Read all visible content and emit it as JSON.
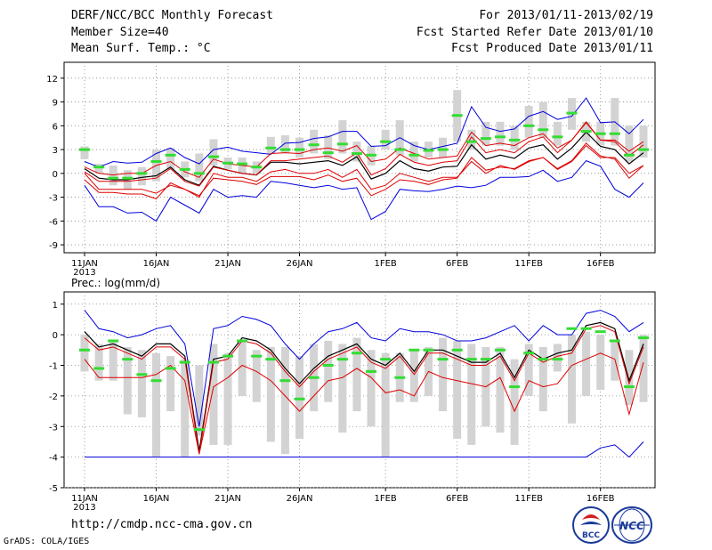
{
  "header": {
    "title": "DERF/NCC/BCC Monthly Forecast",
    "member_size": "Member Size=40",
    "variable": "Mean Surf. Temp.: °C",
    "forecast_period": "For 2013/01/11-2013/02/19",
    "start_ref_date": "Fcst Started Refer Date 2013/01/10",
    "produced_date": "Fcst Produced Date 2013/01/11"
  },
  "footer": {
    "url": "http://cmdp.ncc-cma.gov.cn",
    "credit": "GrADS: COLA/IGES",
    "logo_bcc": "BCC",
    "logo_ncc": "NCC"
  },
  "colors": {
    "box": "#d3d3d3",
    "median": "#33dd33",
    "mean": "#000000",
    "sd": "#dd0000",
    "extreme": "#0000dd",
    "grid": "#888888"
  },
  "chart_data": [
    {
      "type": "box-line",
      "title": "",
      "ylabel": "Mean Surf. Temp.: °C",
      "ylim": [
        -10,
        14
      ],
      "yticks": [
        "12",
        "9",
        "6",
        "3",
        "0",
        "-3",
        "-6",
        "-9"
      ],
      "ytick_values": [
        12,
        9,
        6,
        3,
        0,
        -3,
        -6,
        -9
      ],
      "x_tick_labels": [
        "11JAN",
        "16JAN",
        "21JAN",
        "26JAN",
        "1FEB",
        "6FEB",
        "11FEB",
        "16FEB"
      ],
      "x_tick_days": [
        1,
        6,
        11,
        16,
        22,
        27,
        32,
        37
      ],
      "x_year_label": "2013",
      "days": [
        1,
        2,
        3,
        4,
        5,
        6,
        7,
        8,
        9,
        10,
        11,
        12,
        13,
        14,
        15,
        16,
        17,
        18,
        19,
        20,
        21,
        22,
        23,
        24,
        25,
        26,
        27,
        28,
        29,
        30,
        31,
        32,
        33,
        34,
        35,
        36,
        37,
        38,
        39,
        40
      ],
      "grid": true,
      "series": [
        {
          "name": "max",
          "values": [
            1.5,
            0.8,
            1.5,
            1.3,
            1.4,
            2.5,
            3.2,
            2.0,
            1.2,
            3.0,
            3.3,
            2.8,
            2.6,
            2.4,
            3.8,
            3.9,
            4.4,
            4.6,
            5.3,
            5.3,
            3.4,
            3.5,
            4.5,
            3.5,
            3.0,
            3.4,
            3.8,
            8.4,
            5.8,
            5.3,
            5.6,
            7.2,
            7.8,
            6.8,
            7.2,
            9.5,
            6.4,
            6.5,
            5.0,
            6.8
          ]
        },
        {
          "name": "q75",
          "values": [
            0.8,
            0.0,
            -0.2,
            0.0,
            0.0,
            1.0,
            1.5,
            0.2,
            -0.5,
            1.8,
            1.2,
            1.0,
            0.8,
            2.5,
            2.6,
            2.5,
            3.0,
            3.2,
            2.8,
            3.5,
            1.5,
            1.8,
            3.2,
            2.5,
            1.8,
            2.0,
            2.2,
            5.2,
            3.5,
            3.8,
            3.5,
            4.5,
            5.0,
            3.2,
            4.2,
            6.5,
            4.2,
            4.2,
            2.8,
            4.0
          ]
        },
        {
          "name": "mean",
          "values": [
            0.6,
            -0.6,
            -0.8,
            -0.8,
            -0.5,
            -0.3,
            0.8,
            -0.8,
            -1.5,
            0.9,
            0.4,
            0.0,
            -0.2,
            1.4,
            1.4,
            1.2,
            1.4,
            1.6,
            1.0,
            2.1,
            -0.7,
            0.0,
            1.6,
            0.6,
            0.3,
            0.8,
            0.9,
            3.6,
            1.8,
            2.3,
            1.9,
            3.2,
            3.6,
            1.8,
            3.2,
            5.2,
            3.4,
            3.0,
            1.2,
            2.6
          ]
        },
        {
          "name": "q25",
          "values": [
            0.0,
            -2.0,
            -2.0,
            -2.0,
            -2.0,
            -2.5,
            -1.5,
            -2.0,
            -3.0,
            0.0,
            -0.5,
            -0.5,
            -1.0,
            0.2,
            0.5,
            0.0,
            0.0,
            0.5,
            -0.5,
            0.5,
            -2.0,
            -1.5,
            0.0,
            -0.5,
            -1.0,
            -0.5,
            -0.5,
            1.5,
            0.0,
            1.0,
            0.5,
            1.5,
            2.0,
            0.5,
            1.5,
            3.5,
            2.0,
            2.0,
            0.0,
            1.0
          ]
        },
        {
          "name": "min",
          "values": [
            -1.5,
            -4.2,
            -4.2,
            -5.0,
            -4.9,
            -6.0,
            -3.0,
            -4.0,
            -5.0,
            -2.0,
            -3.0,
            -2.8,
            -3.0,
            -1.0,
            -1.2,
            -1.5,
            -1.8,
            -1.5,
            -2.0,
            -1.8,
            -5.8,
            -4.8,
            -2.0,
            -2.2,
            -2.3,
            -2.0,
            -1.6,
            -1.8,
            -1.5,
            -0.5,
            -0.5,
            -0.4,
            0.4,
            -1.0,
            -0.5,
            1.6,
            0.9,
            -2.0,
            -3.0,
            -1.2
          ]
        },
        {
          "name": "median",
          "values": [
            3.0,
            0.8,
            -0.6,
            -0.6,
            0.0,
            1.5,
            2.3,
            0.5,
            0.0,
            2.1,
            1.3,
            1.2,
            0.8,
            3.2,
            3.0,
            3.0,
            3.6,
            2.6,
            3.7,
            2.5,
            2.3,
            4.0,
            3.0,
            2.3,
            2.9,
            3.0,
            7.3,
            4.0,
            4.4,
            4.6,
            4.2,
            6.0,
            5.5,
            4.6,
            7.6,
            5.3,
            5.0,
            5.0,
            2.3,
            3.0
          ]
        },
        {
          "name": "p1sd",
          "values": [
            0.2,
            -1.0,
            -1.0,
            -1.0,
            -0.8,
            -0.6,
            0.6,
            -1.0,
            -1.6,
            0.8,
            0.4,
            0.0,
            -0.2,
            1.6,
            1.6,
            1.8,
            2.0,
            2.2,
            1.4,
            2.6,
            -0.2,
            0.6,
            2.4,
            1.4,
            1.0,
            1.4,
            1.6,
            4.6,
            2.6,
            3.0,
            2.6,
            4.0,
            4.6,
            2.6,
            4.2,
            6.4,
            4.2,
            4.0,
            2.2,
            3.6
          ]
        },
        {
          "name": "m1sd",
          "values": [
            -0.8,
            -2.4,
            -2.4,
            -2.6,
            -2.6,
            -3.2,
            -1.2,
            -2.0,
            -2.8,
            -0.6,
            -0.8,
            -1.0,
            -1.4,
            -0.4,
            -0.4,
            -0.4,
            -0.8,
            -0.2,
            -1.0,
            -0.6,
            -2.8,
            -2.0,
            -0.8,
            -1.0,
            -1.4,
            -0.8,
            -0.6,
            2.0,
            0.4,
            0.8,
            0.6,
            1.6,
            2.0,
            0.6,
            1.6,
            3.8,
            2.2,
            1.8,
            -0.6,
            1.0
          ]
        }
      ],
      "box_ranges": [
        [
          1.8,
          3.4
        ],
        [
          0.0,
          1.2
        ],
        [
          -1.5,
          1.0
        ],
        [
          -2.0,
          0.4
        ],
        [
          -1.5,
          0.8
        ],
        [
          -1.0,
          3.0
        ],
        [
          0.5,
          3.2
        ],
        [
          -0.5,
          1.5
        ],
        [
          -1.0,
          2.5
        ],
        [
          1.0,
          4.3
        ],
        [
          0.5,
          2.0
        ],
        [
          0.0,
          2.0
        ],
        [
          0.0,
          1.5
        ],
        [
          2.5,
          4.6
        ],
        [
          2.5,
          4.8
        ],
        [
          2.0,
          4.5
        ],
        [
          2.5,
          5.5
        ],
        [
          1.8,
          4.8
        ],
        [
          2.5,
          6.7
        ],
        [
          1.5,
          4.0
        ],
        [
          1.0,
          3.5
        ],
        [
          3.0,
          5.5
        ],
        [
          2.3,
          6.7
        ],
        [
          1.5,
          4.0
        ],
        [
          2.0,
          4.0
        ],
        [
          2.0,
          4.5
        ],
        [
          4.0,
          10.5
        ],
        [
          3.0,
          5.5
        ],
        [
          3.5,
          6.5
        ],
        [
          3.5,
          6.5
        ],
        [
          3.0,
          6.0
        ],
        [
          4.5,
          8.5
        ],
        [
          4.5,
          9.0
        ],
        [
          3.5,
          6.5
        ],
        [
          5.5,
          9.5
        ],
        [
          4.0,
          6.5
        ],
        [
          3.5,
          6.5
        ],
        [
          3.5,
          9.5
        ],
        [
          1.5,
          6.0
        ],
        [
          2.0,
          6.0
        ]
      ]
    },
    {
      "type": "box-line",
      "title": "Prec.: log(mm/d)",
      "ylabel": "Prec.: log(mm/d)",
      "ylim": [
        -5,
        1.4
      ],
      "yticks": [
        "1",
        "0",
        "-1",
        "-2",
        "-3",
        "-4",
        "-5"
      ],
      "ytick_values": [
        1,
        0,
        -1,
        -2,
        -3,
        -4,
        -5
      ],
      "x_tick_labels": [
        "11JAN",
        "16JAN",
        "21JAN",
        "26JAN",
        "1FEB",
        "6FEB",
        "11FEB",
        "16FEB"
      ],
      "x_tick_days": [
        1,
        6,
        11,
        16,
        22,
        27,
        32,
        37
      ],
      "x_year_label": "2013",
      "days": [
        1,
        2,
        3,
        4,
        5,
        6,
        7,
        8,
        9,
        10,
        11,
        12,
        13,
        14,
        15,
        16,
        17,
        18,
        19,
        20,
        21,
        22,
        23,
        24,
        25,
        26,
        27,
        28,
        29,
        30,
        31,
        32,
        33,
        34,
        35,
        36,
        37,
        38,
        39,
        40
      ],
      "grid": true,
      "series": [
        {
          "name": "max",
          "values": [
            0.8,
            0.2,
            0.1,
            -0.1,
            0.0,
            0.2,
            0.3,
            -0.3,
            -3.0,
            0.2,
            0.3,
            0.6,
            0.5,
            0.3,
            -0.3,
            -0.8,
            -0.3,
            0.1,
            0.2,
            0.4,
            -0.1,
            -0.2,
            0.2,
            0.1,
            0.1,
            0.0,
            -0.2,
            -0.2,
            -0.1,
            0.1,
            0.3,
            -0.2,
            0.3,
            0.0,
            0.0,
            0.7,
            0.8,
            0.6,
            0.1,
            0.4
          ]
        },
        {
          "name": "mean",
          "values": [
            0.1,
            -0.4,
            -0.3,
            -0.5,
            -0.7,
            -0.3,
            -0.3,
            -0.7,
            -3.8,
            -0.8,
            -0.7,
            -0.1,
            -0.2,
            -0.5,
            -1.1,
            -1.6,
            -1.1,
            -0.7,
            -0.5,
            -0.3,
            -0.8,
            -1.0,
            -0.6,
            -1.2,
            -0.5,
            -0.5,
            -0.7,
            -0.9,
            -0.9,
            -0.6,
            -1.4,
            -0.5,
            -0.8,
            -0.6,
            -0.5,
            0.3,
            0.4,
            0.2,
            -1.5,
            -0.3
          ]
        },
        {
          "name": "p1sd",
          "values": [
            -0.1,
            -0.5,
            -0.4,
            -0.6,
            -0.8,
            -0.4,
            -0.4,
            -0.8,
            -3.9,
            -0.9,
            -0.8,
            -0.2,
            -0.3,
            -0.6,
            -1.2,
            -1.7,
            -1.2,
            -0.8,
            -0.6,
            -0.4,
            -0.9,
            -1.1,
            -0.7,
            -1.3,
            -0.6,
            -0.6,
            -0.8,
            -1.0,
            -1.0,
            -0.7,
            -1.5,
            -0.6,
            -0.9,
            -0.7,
            -0.6,
            0.2,
            0.3,
            0.1,
            -1.6,
            -0.4
          ]
        },
        {
          "name": "m1sd",
          "values": [
            -0.8,
            -1.4,
            -1.4,
            -1.4,
            -1.4,
            -1.3,
            -1.0,
            -1.5,
            -3.9,
            -1.7,
            -1.4,
            -1.0,
            -1.2,
            -1.5,
            -2.0,
            -2.5,
            -2.0,
            -1.5,
            -1.4,
            -1.1,
            -1.4,
            -1.9,
            -1.8,
            -2.0,
            -1.2,
            -1.4,
            -1.5,
            -1.6,
            -1.7,
            -1.4,
            -2.5,
            -1.5,
            -1.7,
            -1.6,
            -1.0,
            -0.8,
            -0.6,
            -0.8,
            -2.6,
            -0.9
          ]
        },
        {
          "name": "min",
          "values": [
            -4,
            -4,
            -4,
            -4,
            -4,
            -4,
            -4,
            -4,
            -4,
            -4,
            -4,
            -4,
            -4,
            -4,
            -4,
            -4,
            -4,
            -4,
            -4,
            -4,
            -4,
            -4,
            -4,
            -4,
            -4,
            -4,
            -4,
            -4,
            -4,
            -4,
            -4,
            -4,
            -4,
            -4,
            -4,
            -4,
            -3.7,
            -3.6,
            -4,
            -3.5
          ]
        },
        {
          "name": "median",
          "values": [
            -0.5,
            -1.1,
            -0.2,
            -0.8,
            -1.3,
            -1.5,
            -1.1,
            -0.9,
            -3.1,
            -0.9,
            -0.7,
            -0.2,
            -0.7,
            -0.8,
            -1.5,
            -2.1,
            -1.4,
            -1.0,
            -0.8,
            -0.6,
            -1.2,
            -0.8,
            -1.4,
            -0.5,
            -0.5,
            -0.8,
            -0.5,
            -0.8,
            -0.8,
            -0.5,
            -1.7,
            -0.6,
            -0.8,
            -0.8,
            0.2,
            0.2,
            0.1,
            -0.2,
            -1.7,
            -0.1
          ]
        }
      ],
      "box_ranges": [
        [
          -1.2,
          0.0
        ],
        [
          -1.5,
          -0.3
        ],
        [
          -1.5,
          -0.2
        ],
        [
          -2.6,
          -0.4
        ],
        [
          -2.7,
          -0.5
        ],
        [
          -4.0,
          -0.6
        ],
        [
          -2.5,
          -0.7
        ],
        [
          -4.0,
          -0.8
        ],
        [
          -3.3,
          -1.0
        ],
        [
          -3.6,
          -0.3
        ],
        [
          -3.6,
          -0.6
        ],
        [
          -2.0,
          -0.2
        ],
        [
          -2.2,
          -0.5
        ],
        [
          -3.5,
          -0.4
        ],
        [
          -3.9,
          -0.4
        ],
        [
          -3.4,
          -0.7
        ],
        [
          -2.5,
          -0.3
        ],
        [
          -2.2,
          -0.2
        ],
        [
          -3.2,
          -0.3
        ],
        [
          -2.5,
          -0.1
        ],
        [
          -3.0,
          -0.5
        ],
        [
          -4.0,
          -0.6
        ],
        [
          -2.2,
          -0.6
        ],
        [
          -2.2,
          -0.5
        ],
        [
          -2.0,
          -0.4
        ],
        [
          -2.5,
          -0.1
        ],
        [
          -3.4,
          -0.2
        ],
        [
          -3.6,
          -0.3
        ],
        [
          -3.0,
          -0.4
        ],
        [
          -3.2,
          -0.4
        ],
        [
          -3.6,
          -0.8
        ],
        [
          -2.0,
          -0.3
        ],
        [
          -2.5,
          -0.4
        ],
        [
          -1.2,
          -0.3
        ],
        [
          -2.9,
          0.0
        ],
        [
          -2.0,
          0.1
        ],
        [
          -1.8,
          0.0
        ],
        [
          -1.5,
          -0.2
        ],
        [
          -2.3,
          -0.5
        ],
        [
          -2.2,
          0.0
        ]
      ]
    }
  ]
}
